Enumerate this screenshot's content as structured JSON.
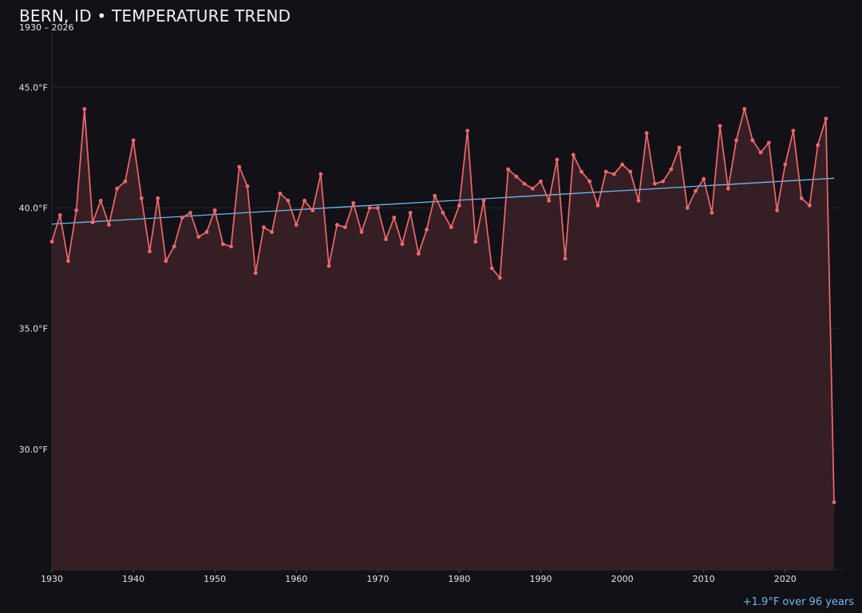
{
  "chart_data": {
    "type": "line",
    "title": "BERN, ID • TEMPERATURE TREND",
    "subtitle": "1930 – 2026",
    "xlabel": "",
    "ylabel": "",
    "xlim": [
      1930,
      2026
    ],
    "ylim": [
      25.0,
      46.3
    ],
    "y_ticks": [
      30.0,
      35.0,
      40.0,
      45.0
    ],
    "y_tick_labels": [
      "30.0°F",
      "35.0°F",
      "40.0°F",
      "45.0°F"
    ],
    "x_ticks": [
      1930,
      1940,
      1950,
      1960,
      1970,
      1980,
      1990,
      2000,
      2010,
      2020
    ],
    "x_tick_labels": [
      "1930",
      "1940",
      "1950",
      "1960",
      "1970",
      "1980",
      "1990",
      "2000",
      "2010",
      "2020"
    ],
    "grid": true,
    "series": [
      {
        "x": [
          1930,
          1931,
          1932,
          1933,
          1934,
          1935,
          1936,
          1937,
          1938,
          1939,
          1940,
          1941,
          1942,
          1943,
          1944,
          1945,
          1946,
          1947,
          1948,
          1949,
          1950,
          1951,
          1952,
          1953,
          1954,
          1955,
          1956,
          1957,
          1958,
          1959,
          1960,
          1961,
          1962,
          1963,
          1964,
          1965,
          1966,
          1967,
          1968,
          1969,
          1970,
          1971,
          1972,
          1973,
          1974,
          1975,
          1976,
          1977,
          1978,
          1979,
          1980,
          1981,
          1982,
          1983,
          1984,
          1985,
          1986,
          1987,
          1988,
          1989,
          1990,
          1991,
          1992,
          1993,
          1994,
          1995,
          1996,
          1997,
          1998,
          1999,
          2000,
          2001,
          2002,
          2003,
          2004,
          2005,
          2006,
          2007,
          2008,
          2009,
          2010,
          2011,
          2012,
          2013,
          2014,
          2015,
          2016,
          2017,
          2018,
          2019,
          2020,
          2021,
          2022,
          2023,
          2024,
          2025,
          2026
        ],
        "values": [
          38.6,
          39.7,
          37.8,
          39.9,
          44.1,
          39.4,
          40.3,
          39.3,
          40.8,
          41.1,
          42.8,
          40.4,
          38.2,
          40.4,
          37.8,
          38.4,
          39.6,
          39.8,
          38.8,
          39.0,
          39.9,
          38.5,
          38.4,
          41.7,
          40.9,
          37.3,
          39.2,
          39.0,
          40.6,
          40.3,
          39.3,
          40.3,
          39.9,
          41.4,
          37.6,
          39.3,
          39.2,
          40.2,
          39.0,
          40.0,
          40.0,
          38.7,
          39.6,
          38.5,
          39.8,
          38.1,
          39.1,
          40.5,
          39.8,
          39.2,
          40.1,
          43.2,
          38.6,
          40.3,
          37.5,
          37.1,
          41.6,
          41.3,
          41.0,
          40.8,
          41.1,
          40.3,
          42.0,
          37.9,
          42.2,
          41.5,
          41.1,
          40.1,
          41.5,
          41.4,
          41.8,
          41.5,
          40.3,
          43.1,
          41.0,
          41.1,
          41.6,
          42.5,
          40.0,
          40.7,
          41.2,
          39.8,
          43.4,
          40.8,
          42.8,
          44.1,
          42.8,
          42.3,
          42.7,
          39.9,
          41.8,
          43.2,
          40.4,
          40.1,
          42.6,
          43.7,
          27.8
        ],
        "color": "#f0686c",
        "fill": "#351f25"
      }
    ],
    "trendline": {
      "x": [
        1930,
        2026
      ],
      "values": [
        39.33,
        41.23
      ],
      "color": "#6fb9ee"
    },
    "annotation": "+1.9°F over 96 years"
  }
}
